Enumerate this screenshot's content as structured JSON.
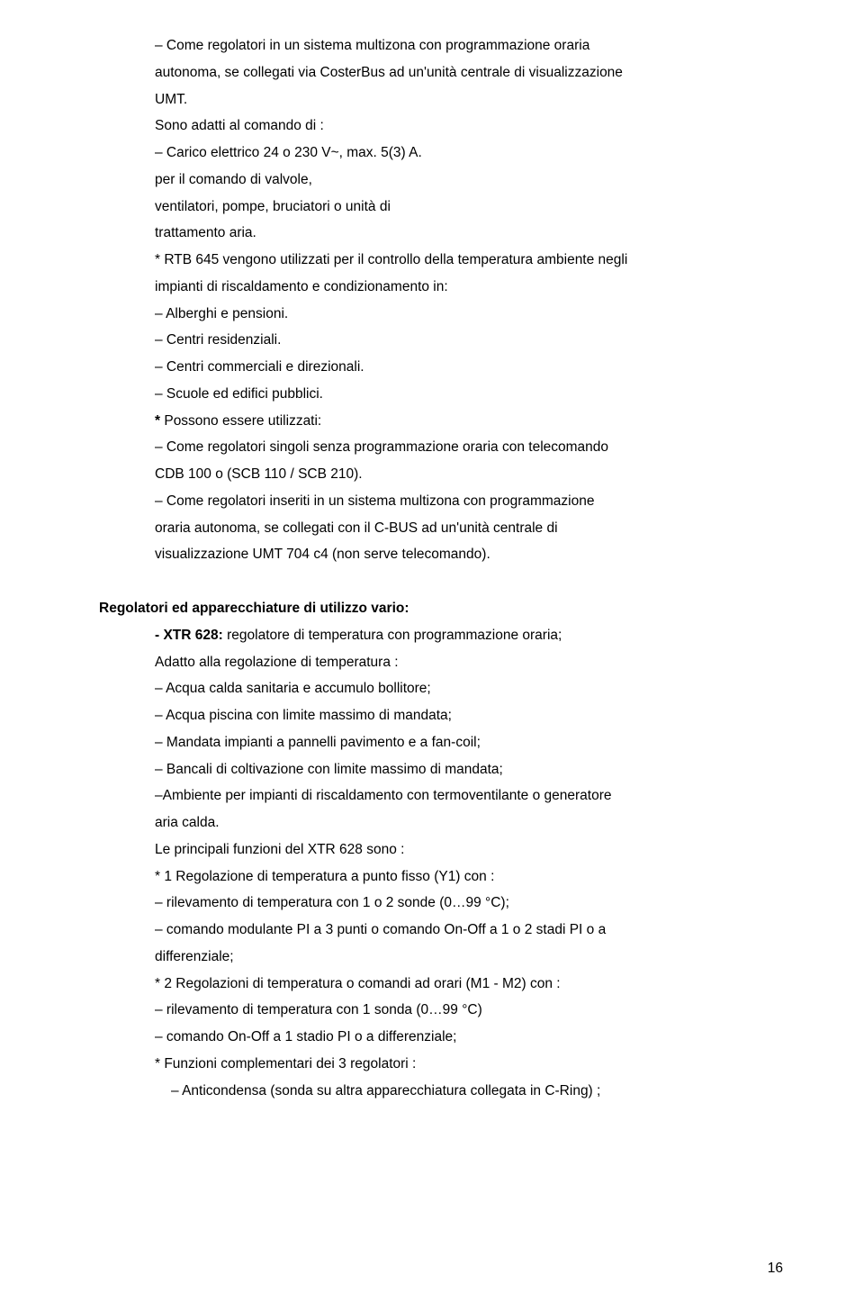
{
  "block1": {
    "l1": "– Come regolatori in un sistema multizona con programmazione oraria",
    "l2": "autonoma, se collegati via CosterBus ad un'unità centrale di visualizzazione",
    "l3": "UMT.",
    "l4": "Sono adatti al comando di :",
    "l5": "– Carico elettrico 24 o 230 V~, max. 5(3) A.",
    "l6": "per il comando di valvole,",
    "l7": "ventilatori, pompe, bruciatori o unità di",
    "l8": "trattamento aria.",
    "l9": "* RTB 645 vengono utilizzati per il controllo della temperatura ambiente negli",
    "l10": "impianti di riscaldamento e condizionamento in:",
    "l11": "– Alberghi e pensioni.",
    "l12": "– Centri residenziali.",
    "l13": "– Centri commerciali e direzionali.",
    "l14": "– Scuole ed edifici pubblici.",
    "l15a": "*",
    "l15b": " Possono essere utilizzati:",
    "l16": "– Come regolatori singoli senza programmazione oraria con telecomando",
    "l17": "CDB 100 o (SCB 110 / SCB 210).",
    "l18": "– Come regolatori inseriti in un sistema multizona con programmazione",
    "l19": "oraria autonoma, se collegati con il C-BUS ad un'unità centrale di",
    "l20": "visualizzazione UMT 704 c4 (non serve telecomando)."
  },
  "heading2": "Regolatori ed apparecchiature di utilizzo vario:",
  "block2": {
    "l1a": "- XTR 628:",
    "l1b": " regolatore di temperatura con programmazione oraria;",
    "l2": "Adatto alla regolazione di temperatura :",
    "l3": "– Acqua calda sanitaria e accumulo bollitore;",
    "l4": "– Acqua piscina con limite massimo di mandata;",
    "l5": "– Mandata impianti a pannelli pavimento e a fan-coil;",
    "l6": "– Bancali di coltivazione con limite massimo di mandata;",
    "l7": "–Ambiente per impianti di riscaldamento con termoventilante o generatore",
    "l8": "aria calda.",
    "l9": "Le principali funzioni del XTR 628 sono :",
    "l10": "* 1 Regolazione di temperatura a punto fisso (Y1) con :",
    "l11": "– rilevamento di temperatura con 1 o 2 sonde (0…99 °C);",
    "l12": "– comando modulante PI a 3 punti o comando On-Off a 1 o 2 stadi PI o a",
    "l13": "differenziale;",
    "l14": "* 2 Regolazioni di temperatura o comandi ad orari (M1 - M2) con :",
    "l15": "– rilevamento di temperatura con 1 sonda (0…99 °C)",
    "l16": "– comando On-Off a 1 stadio PI o a differenziale;",
    "l17": "* Funzioni complementari dei 3 regolatori :",
    "l18": "– Anticondensa (sonda su altra apparecchiatura collegata in C-Ring) ;"
  },
  "pagenum": "16"
}
